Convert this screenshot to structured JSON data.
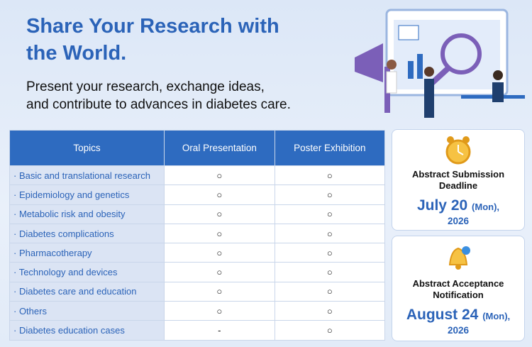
{
  "header": {
    "title_lines": [
      "Share Your Research with",
      "the World."
    ],
    "subtitle_lines": [
      "Present your research, exchange ideas,",
      "and contribute to advances in diabetes care."
    ]
  },
  "table": {
    "columns": [
      "Topics",
      "Oral Presentation",
      "Poster Exhibition"
    ],
    "rows": [
      [
        "· Basic and translational research",
        "○",
        "○"
      ],
      [
        "· Epidemiology and genetics",
        "○",
        "○"
      ],
      [
        "· Metabolic risk and obesity",
        "○",
        "○"
      ],
      [
        "· Diabetes complications",
        "○",
        "○"
      ],
      [
        "· Pharmacotherapy",
        "○",
        "○"
      ],
      [
        "· Technology and devices",
        "○",
        "○"
      ],
      [
        "· Diabetes care and education",
        "○",
        "○"
      ],
      [
        "· Others",
        "○",
        "○"
      ],
      [
        "· Diabetes education cases",
        "-",
        "○"
      ]
    ]
  },
  "cards": [
    {
      "title": "Abstract Submission Deadline",
      "date": "July 20",
      "day": "(Mon),",
      "year": "2026"
    },
    {
      "title": "Abstract Acceptance Notification",
      "date": "August 24",
      "day": "(Mon),",
      "year": "2026"
    }
  ]
}
